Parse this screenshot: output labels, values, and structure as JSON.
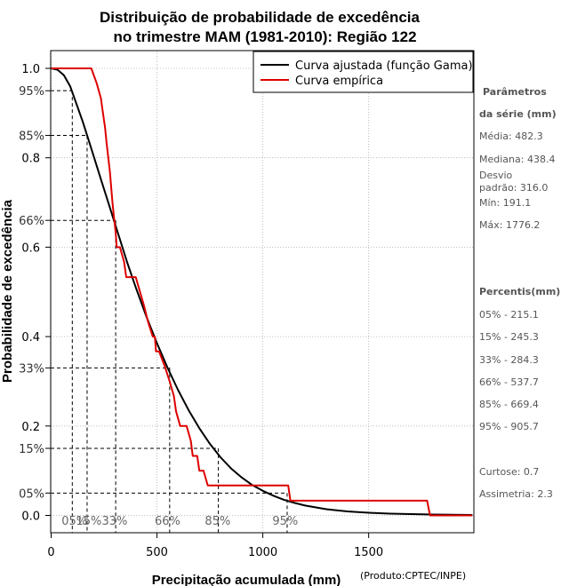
{
  "chart_data": {
    "type": "line",
    "title_line1": "Distribuição de probabilidade de excedência",
    "title_line2": "no trimestre MAM (1981-2010): Região 122",
    "xlabel": "Precipitação acumulada (mm)",
    "ylabel": "Probabilidade de excedência",
    "credit": "(Produto:CPTEC/INPE)",
    "xlim": [
      0,
      1990
    ],
    "ylim": [
      -0.035,
      1.01
    ],
    "x_ticks": [
      0,
      500,
      1000,
      1500
    ],
    "x_tick_labels": [
      "0",
      "500",
      "1000",
      "1500"
    ],
    "y_ticks": [
      0.0,
      0.2,
      0.4,
      0.6,
      0.8,
      1.0
    ],
    "y_tick_labels": [
      "0.0",
      "0.2",
      "0.4",
      "0.6",
      "0.8",
      "1.0"
    ],
    "percent_ticks": [
      {
        "p": 0.95,
        "label": "95%",
        "x": 100
      },
      {
        "p": 0.85,
        "label": "85%",
        "x": 170
      },
      {
        "p": 0.66,
        "label": "66%",
        "x": 305
      },
      {
        "p": 0.33,
        "label": "33%",
        "x": 560
      },
      {
        "p": 0.15,
        "label": "15%",
        "x": 790
      },
      {
        "p": 0.05,
        "label": "05%",
        "x": 1115
      }
    ],
    "x_percent_labels": [
      {
        "x": 110,
        "label": "05%"
      },
      {
        "x": 178,
        "label": "15%"
      },
      {
        "x": 300,
        "label": "33%"
      },
      {
        "x": 550,
        "label": "66%"
      },
      {
        "x": 787,
        "label": "85%"
      },
      {
        "x": 1106,
        "label": "95%"
      }
    ],
    "legend": [
      {
        "label": "Curva ajustada (função Gama)",
        "color": "#000000"
      },
      {
        "label": "Curva empírica",
        "color": "#dd0000"
      }
    ],
    "series": [
      {
        "name": "Curva ajustada (função Gama)",
        "color": "#000000",
        "points": [
          [
            0,
            1.0
          ],
          [
            30,
            0.997
          ],
          [
            60,
            0.985
          ],
          [
            90,
            0.96
          ],
          [
            120,
            0.92
          ],
          [
            150,
            0.88
          ],
          [
            180,
            0.835
          ],
          [
            210,
            0.79
          ],
          [
            240,
            0.745
          ],
          [
            270,
            0.7
          ],
          [
            300,
            0.655
          ],
          [
            330,
            0.61
          ],
          [
            360,
            0.565
          ],
          [
            400,
            0.51
          ],
          [
            450,
            0.445
          ],
          [
            500,
            0.385
          ],
          [
            550,
            0.33
          ],
          [
            600,
            0.28
          ],
          [
            650,
            0.235
          ],
          [
            700,
            0.195
          ],
          [
            750,
            0.16
          ],
          [
            800,
            0.13
          ],
          [
            850,
            0.105
          ],
          [
            900,
            0.085
          ],
          [
            950,
            0.068
          ],
          [
            1000,
            0.055
          ],
          [
            1050,
            0.044
          ],
          [
            1100,
            0.035
          ],
          [
            1150,
            0.028
          ],
          [
            1200,
            0.022
          ],
          [
            1300,
            0.014
          ],
          [
            1400,
            0.009
          ],
          [
            1500,
            0.006
          ],
          [
            1600,
            0.004
          ],
          [
            1700,
            0.003
          ],
          [
            1800,
            0.002
          ],
          [
            1990,
            0.001
          ]
        ]
      },
      {
        "name": "Curva empírica",
        "color": "#dd0000",
        "points": [
          [
            0,
            1.0
          ],
          [
            190,
            1.0
          ],
          [
            215,
            0.967
          ],
          [
            235,
            0.933
          ],
          [
            245,
            0.9
          ],
          [
            255,
            0.867
          ],
          [
            262,
            0.833
          ],
          [
            270,
            0.8
          ],
          [
            278,
            0.767
          ],
          [
            284,
            0.733
          ],
          [
            290,
            0.7
          ],
          [
            297,
            0.667
          ],
          [
            305,
            0.633
          ],
          [
            310,
            0.6
          ],
          [
            325,
            0.6
          ],
          [
            345,
            0.567
          ],
          [
            355,
            0.533
          ],
          [
            400,
            0.533
          ],
          [
            420,
            0.5
          ],
          [
            440,
            0.467
          ],
          [
            458,
            0.433
          ],
          [
            480,
            0.4
          ],
          [
            490,
            0.4
          ],
          [
            495,
            0.367
          ],
          [
            510,
            0.367
          ],
          [
            537,
            0.333
          ],
          [
            560,
            0.3
          ],
          [
            580,
            0.267
          ],
          [
            590,
            0.233
          ],
          [
            610,
            0.2
          ],
          [
            640,
            0.2
          ],
          [
            660,
            0.167
          ],
          [
            669,
            0.133
          ],
          [
            690,
            0.133
          ],
          [
            700,
            0.1
          ],
          [
            720,
            0.1
          ],
          [
            740,
            0.067
          ],
          [
            1120,
            0.067
          ],
          [
            1130,
            0.033
          ],
          [
            1776,
            0.033
          ],
          [
            1790,
            0.0
          ],
          [
            1990,
            0.0
          ]
        ]
      }
    ]
  },
  "side_panel": {
    "params_head_1": "Parâmetros",
    "params_head_2": "da série (mm)",
    "media": "Média: 482.3",
    "mediana": "Mediana: 438.4",
    "desvio_1": "Desvio",
    "desvio_2": "padrão: 316.0",
    "min": "Mín: 191.1",
    "max": "Máx: 1776.2",
    "percentis_head": "Percentis(mm)",
    "p05": "05% - 215.1",
    "p15": "15% - 245.3",
    "p33": "33% - 284.3",
    "p66": "66% - 537.7",
    "p85": "85% - 669.4",
    "p95": "95% - 905.7",
    "curtose": "Curtose: 0.7",
    "assimetria": "Assimetria: 2.3"
  }
}
